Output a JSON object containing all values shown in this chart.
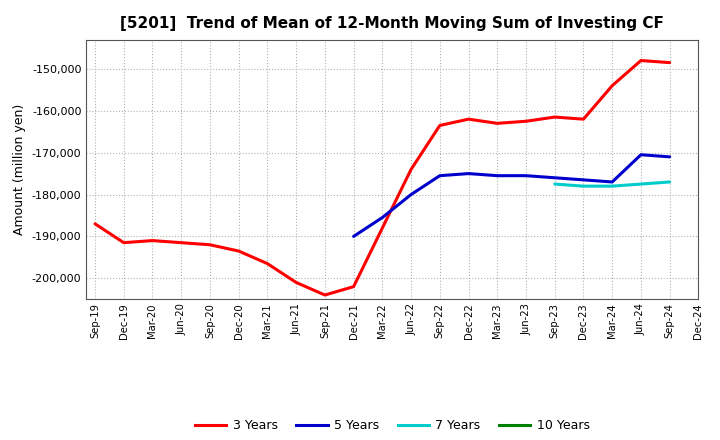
{
  "title": "[5201]  Trend of Mean of 12-Month Moving Sum of Investing CF",
  "ylabel": "Amount (million yen)",
  "background_color": "#ffffff",
  "grid_color": "#aaaaaa",
  "ylim": [
    -205000,
    -143000
  ],
  "yticks": [
    -200000,
    -190000,
    -180000,
    -170000,
    -160000,
    -150000
  ],
  "x_labels": [
    "Sep-19",
    "Dec-19",
    "Mar-20",
    "Jun-20",
    "Sep-20",
    "Dec-20",
    "Mar-21",
    "Jun-21",
    "Sep-21",
    "Dec-21",
    "Mar-22",
    "Jun-22",
    "Sep-22",
    "Dec-22",
    "Mar-23",
    "Jun-23",
    "Sep-23",
    "Dec-23",
    "Mar-24",
    "Jun-24",
    "Sep-24",
    "Dec-24"
  ],
  "series": {
    "3 Years": {
      "color": "#ff0000",
      "linewidth": 2.2,
      "data_x": [
        0,
        1,
        2,
        3,
        4,
        5,
        6,
        7,
        8,
        9,
        10,
        11,
        12,
        13,
        14,
        15,
        16,
        17,
        18,
        19,
        20
      ],
      "data_y": [
        -187000,
        -191500,
        -191000,
        -191500,
        -192000,
        -193500,
        -196500,
        -201000,
        -204000,
        -202000,
        -188000,
        -174000,
        -163500,
        -162000,
        -163000,
        -162500,
        -161500,
        -162000,
        -154000,
        -148000,
        -148500
      ]
    },
    "5 Years": {
      "color": "#0000cc",
      "linewidth": 2.2,
      "data_x": [
        9,
        10,
        11,
        12,
        13,
        14,
        15,
        16,
        17,
        18,
        19,
        20
      ],
      "data_y": [
        -190000,
        -185500,
        -180000,
        -175500,
        -175000,
        -175500,
        -175500,
        -176000,
        -176500,
        -177000,
        -170500,
        -171000
      ]
    },
    "7 Years": {
      "color": "#00cccc",
      "linewidth": 2.2,
      "data_x": [
        16,
        17,
        18,
        19,
        20
      ],
      "data_y": [
        -177500,
        -178000,
        -178000,
        -177500,
        -177000
      ]
    },
    "10 Years": {
      "color": "#008000",
      "linewidth": 2.2,
      "data_x": [],
      "data_y": []
    }
  },
  "legend_labels": [
    "3 Years",
    "5 Years",
    "7 Years",
    "10 Years"
  ],
  "legend_colors": [
    "#ff0000",
    "#0000cc",
    "#00cccc",
    "#008000"
  ]
}
